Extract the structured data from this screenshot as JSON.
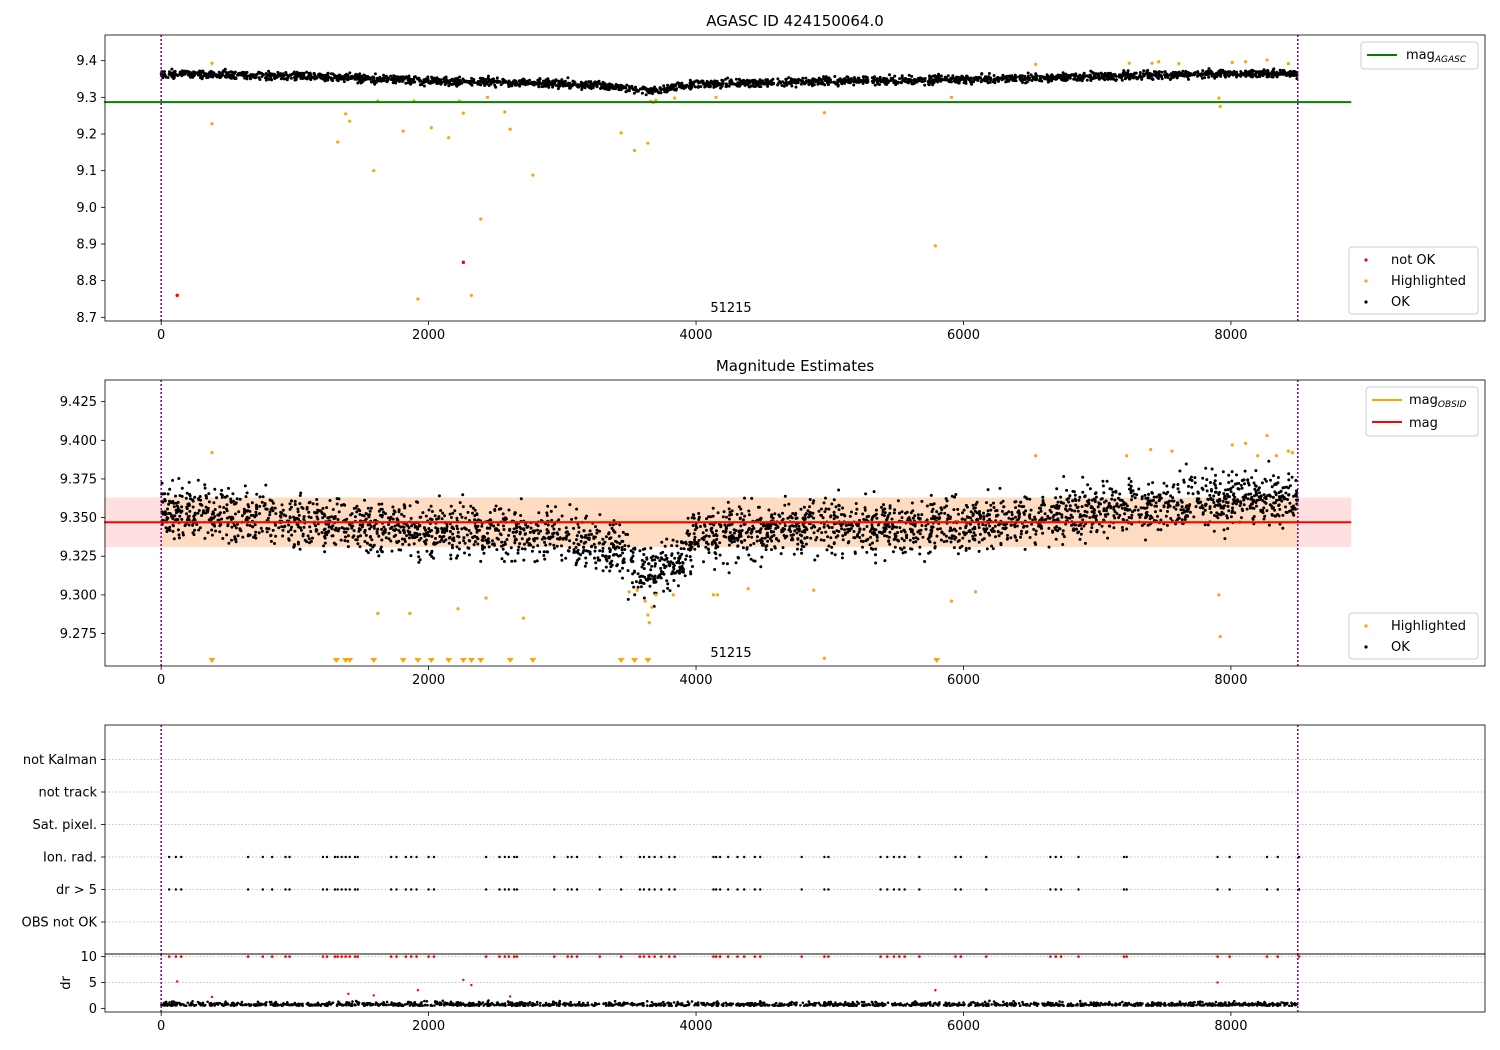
{
  "colors": {
    "ok": "#000000",
    "highlighted": "#ffa500",
    "not_ok": "#ff0000",
    "mag_agasc": "#008000",
    "mag": "#ff0000",
    "mag_obsid": "#ffa500",
    "band_fill": "#ffcccc",
    "obs_boundary": "#800080"
  },
  "chart_data": [
    {
      "type": "scatter",
      "title": "AGASC ID 424150064.0",
      "xlim": [
        -420,
        9900
      ],
      "ylim": [
        8.69,
        9.47
      ],
      "xticks": [
        0,
        2000,
        4000,
        6000,
        8000
      ],
      "yticks": [
        8.7,
        8.8,
        8.9,
        9.0,
        9.1,
        9.2,
        9.3,
        9.4
      ],
      "xtick_labels": [
        "0",
        "2000",
        "4000",
        "6000",
        "8000"
      ],
      "ytick_labels": [
        "8.7",
        "8.8",
        "8.9",
        "9.0",
        "9.1",
        "9.2",
        "9.3",
        "9.4"
      ],
      "obsid_annotation": "51215",
      "obs_boundaries": [
        0,
        8500
      ],
      "mag_agasc": 9.287,
      "ok_trend": [
        [
          0,
          9.365
        ],
        [
          1000,
          9.358
        ],
        [
          2000,
          9.345
        ],
        [
          3000,
          9.338
        ],
        [
          3400,
          9.33
        ],
        [
          3650,
          9.318
        ],
        [
          4000,
          9.335
        ],
        [
          5000,
          9.345
        ],
        [
          6000,
          9.348
        ],
        [
          7000,
          9.357
        ],
        [
          8000,
          9.365
        ],
        [
          8500,
          9.365
        ]
      ],
      "ok_spread": 0.01,
      "highlighted_points": [
        [
          380,
          9.393
        ],
        [
          380,
          9.228
        ],
        [
          1320,
          9.178
        ],
        [
          1380,
          9.255
        ],
        [
          1410,
          9.235
        ],
        [
          1590,
          9.1
        ],
        [
          1620,
          9.29
        ],
        [
          1810,
          9.208
        ],
        [
          1890,
          9.29
        ],
        [
          1920,
          8.75
        ],
        [
          2020,
          9.217
        ],
        [
          2150,
          9.19
        ],
        [
          2230,
          9.29
        ],
        [
          2260,
          9.257
        ],
        [
          2320,
          8.76
        ],
        [
          2390,
          8.968
        ],
        [
          2440,
          9.3
        ],
        [
          2570,
          9.26
        ],
        [
          2610,
          9.213
        ],
        [
          2780,
          9.088
        ],
        [
          3440,
          9.203
        ],
        [
          3540,
          9.155
        ],
        [
          3640,
          9.175
        ],
        [
          3660,
          9.289
        ],
        [
          3680,
          9.286
        ],
        [
          3700,
          9.292
        ],
        [
          3840,
          9.298
        ],
        [
          4150,
          9.3
        ],
        [
          4960,
          9.258
        ],
        [
          5790,
          8.895
        ],
        [
          5910,
          9.3
        ],
        [
          6540,
          9.39
        ],
        [
          7240,
          9.393
        ],
        [
          7410,
          9.393
        ],
        [
          7460,
          9.397
        ],
        [
          7610,
          9.392
        ],
        [
          7910,
          9.298
        ],
        [
          7920,
          9.275
        ],
        [
          8010,
          9.395
        ],
        [
          8110,
          9.397
        ],
        [
          8270,
          9.402
        ],
        [
          8430,
          9.392
        ]
      ],
      "not_ok_points": [
        [
          120,
          8.76
        ],
        [
          2260,
          8.85
        ]
      ],
      "legend_upper": [
        "mag$_{AGASC}$"
      ],
      "legend_lower": [
        "not OK",
        "Highlighted",
        "OK"
      ]
    },
    {
      "type": "scatter",
      "title": "Magnitude Estimates",
      "xlim": [
        -420,
        9900
      ],
      "ylim": [
        9.254,
        9.439
      ],
      "xticks": [
        0,
        2000,
        4000,
        6000,
        8000
      ],
      "yticks": [
        9.275,
        9.3,
        9.325,
        9.35,
        9.375,
        9.4,
        9.425
      ],
      "xtick_labels": [
        "0",
        "2000",
        "4000",
        "6000",
        "8000"
      ],
      "ytick_labels": [
        "9.275",
        "9.300",
        "9.325",
        "9.350",
        "9.375",
        "9.400",
        "9.425"
      ],
      "obsid_annotation": "51215",
      "obs_boundaries": [
        0,
        8500
      ],
      "mag": 9.347,
      "mag_band": [
        9.331,
        9.363
      ],
      "mag_obsid": 9.347,
      "mag_obsid_band": [
        9.331,
        9.363
      ],
      "ok_trend": [
        [
          0,
          9.355
        ],
        [
          1000,
          9.348
        ],
        [
          2000,
          9.342
        ],
        [
          3000,
          9.338
        ],
        [
          3400,
          9.33
        ],
        [
          3650,
          9.313
        ],
        [
          3850,
          9.32
        ],
        [
          4000,
          9.338
        ],
        [
          5000,
          9.345
        ],
        [
          6000,
          9.345
        ],
        [
          7000,
          9.355
        ],
        [
          8000,
          9.362
        ],
        [
          8500,
          9.362
        ]
      ],
      "ok_spread": 0.012,
      "highlighted_points": [
        [
          380,
          9.392
        ],
        [
          1620,
          9.288
        ],
        [
          1860,
          9.288
        ],
        [
          2220,
          9.291
        ],
        [
          2430,
          9.298
        ],
        [
          2710,
          9.285
        ],
        [
          3500,
          9.302
        ],
        [
          3560,
          9.303
        ],
        [
          3620,
          9.296
        ],
        [
          3640,
          9.287
        ],
        [
          3650,
          9.282
        ],
        [
          3670,
          9.292
        ],
        [
          3700,
          9.3
        ],
        [
          3830,
          9.3
        ],
        [
          4130,
          9.3
        ],
        [
          4160,
          9.3
        ],
        [
          4390,
          9.304
        ],
        [
          4880,
          9.303
        ],
        [
          4960,
          9.259
        ],
        [
          5910,
          9.296
        ],
        [
          6090,
          9.302
        ],
        [
          6540,
          9.39
        ],
        [
          7220,
          9.39
        ],
        [
          7400,
          9.394
        ],
        [
          7560,
          9.393
        ],
        [
          7910,
          9.3
        ],
        [
          7920,
          9.273
        ],
        [
          8010,
          9.397
        ],
        [
          8110,
          9.398
        ],
        [
          8200,
          9.39
        ],
        [
          8270,
          9.403
        ],
        [
          8340,
          9.39
        ],
        [
          8430,
          9.393
        ],
        [
          8460,
          9.392
        ]
      ],
      "below_range_x": [
        380,
        1310,
        1380,
        1410,
        1590,
        1810,
        1920,
        2020,
        2150,
        2260,
        2320,
        2390,
        2610,
        2780,
        3440,
        3540,
        3640,
        5800
      ],
      "legend_upper": [
        "mag$_{OBSID}$",
        "mag"
      ],
      "legend_lower": [
        "Highlighted",
        "OK"
      ]
    },
    {
      "type": "scatter",
      "xlim": [
        -420,
        9900
      ],
      "obs_boundaries": [
        0,
        8500
      ],
      "flag_categories": [
        "OBS not OK",
        "dr > 5",
        "Ion. rad.",
        "Sat. pixel.",
        "not track",
        "not Kalman"
      ],
      "flagged_x": [
        60,
        110,
        150,
        650,
        760,
        830,
        930,
        960,
        1210,
        1240,
        1300,
        1320,
        1350,
        1380,
        1410,
        1450,
        1470,
        1720,
        1760,
        1830,
        1870,
        1910,
        2000,
        2040,
        2430,
        2530,
        2570,
        2600,
        2640,
        2660,
        2940,
        3040,
        3070,
        3110,
        3280,
        3440,
        3580,
        3610,
        3650,
        3690,
        3740,
        3800,
        3840,
        4130,
        4150,
        4180,
        4240,
        4310,
        4360,
        4440,
        4480,
        4790,
        4960,
        4990,
        5380,
        5430,
        5480,
        5520,
        5560,
        5670,
        5940,
        5980,
        6170,
        6650,
        6690,
        6730,
        6860,
        7200,
        7220,
        7900,
        7990,
        8270,
        8350,
        8510
      ],
      "dr_ylim": [
        -0.7,
        10.5
      ],
      "dr_yticks": [
        0,
        5,
        10
      ],
      "dr_ytick_labels": [
        "0",
        "5",
        "10"
      ],
      "dr_ylabel": "dr",
      "dr_flagged_value": 10,
      "dr_baseline": 0.5,
      "dr_outliers": [
        [
          120,
          5.2
        ],
        [
          380,
          2.2
        ],
        [
          1400,
          2.8
        ],
        [
          1590,
          2.5
        ],
        [
          1920,
          3.5
        ],
        [
          2260,
          5.5
        ],
        [
          2320,
          4.5
        ],
        [
          2610,
          2.3
        ],
        [
          5790,
          3.5
        ],
        [
          7900,
          5.0
        ]
      ],
      "xticks": [
        0,
        2000,
        4000,
        6000,
        8000
      ],
      "xtick_labels": [
        "0",
        "2000",
        "4000",
        "6000",
        "8000"
      ]
    }
  ]
}
